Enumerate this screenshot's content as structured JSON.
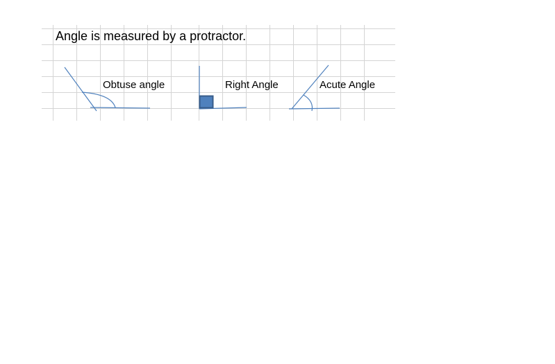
{
  "title": "Angle is measured by a protractor.",
  "angles": {
    "obtuse": {
      "label": "Obtuse angle"
    },
    "right": {
      "label": "Right Angle"
    },
    "acute": {
      "label": "Acute Angle"
    }
  },
  "colors": {
    "gridline": "#d4d4d4",
    "ray": "#4f81bd",
    "square_fill": "#4f81bd",
    "square_border": "#385d8a",
    "text": "#000000"
  }
}
